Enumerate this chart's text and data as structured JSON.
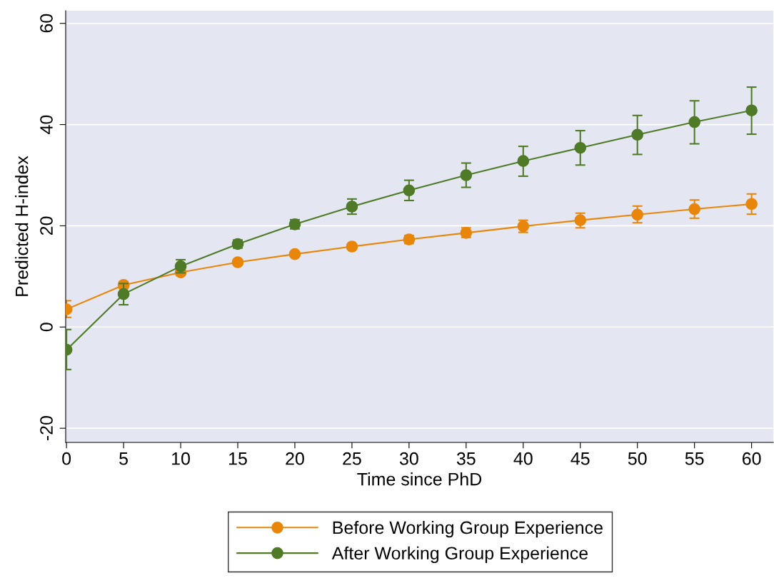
{
  "chart_data": {
    "type": "line",
    "xlabel": "Time since PhD",
    "ylabel": "Predicted H-index",
    "x": [
      0,
      5,
      10,
      15,
      20,
      25,
      30,
      35,
      40,
      45,
      50,
      55,
      60
    ],
    "series": [
      {
        "name": "Before Working Group Experience",
        "color": "#e8860c",
        "values": [
          3.5,
          8.3,
          10.8,
          12.8,
          14.4,
          15.9,
          17.3,
          18.6,
          19.9,
          21.1,
          22.2,
          23.3,
          24.3
        ],
        "errors": [
          [
            1.9,
            5.2
          ],
          [
            7.6,
            9.0
          ],
          [
            10.2,
            11.4
          ],
          null,
          null,
          null,
          [
            16.5,
            18.1
          ],
          [
            17.7,
            19.6
          ],
          [
            18.7,
            21.1
          ],
          [
            19.6,
            22.5
          ],
          [
            20.6,
            23.9
          ],
          [
            21.5,
            25.1
          ],
          [
            22.3,
            26.3
          ]
        ]
      },
      {
        "name": "After Working Group Experience",
        "color": "#4f7a28",
        "values": [
          -4.5,
          6.5,
          12.0,
          16.4,
          20.3,
          23.8,
          27.0,
          30.0,
          32.8,
          35.4,
          38.0,
          40.5,
          42.8
        ],
        "errors": [
          [
            -8.4,
            -0.5
          ],
          [
            4.4,
            8.6
          ],
          [
            10.7,
            13.3
          ],
          [
            15.6,
            17.2
          ],
          [
            19.4,
            21.2
          ],
          [
            22.3,
            25.3
          ],
          [
            25.0,
            29.0
          ],
          [
            27.6,
            32.4
          ],
          [
            29.8,
            35.7
          ],
          [
            32.0,
            38.8
          ],
          [
            34.1,
            41.8
          ],
          [
            36.2,
            44.7
          ],
          [
            38.1,
            47.4
          ]
        ]
      }
    ],
    "xlim": [
      -0.07,
      61.9
    ],
    "xticks": [
      0,
      5,
      10,
      15,
      20,
      25,
      30,
      35,
      40,
      45,
      50,
      55,
      60
    ],
    "ylim": [
      -22.8,
      62.5
    ],
    "yticks": [
      -20,
      0,
      20,
      40,
      60
    ],
    "grid": "y",
    "legend": "bottom",
    "marker": "circle",
    "line_style": "solid"
  }
}
